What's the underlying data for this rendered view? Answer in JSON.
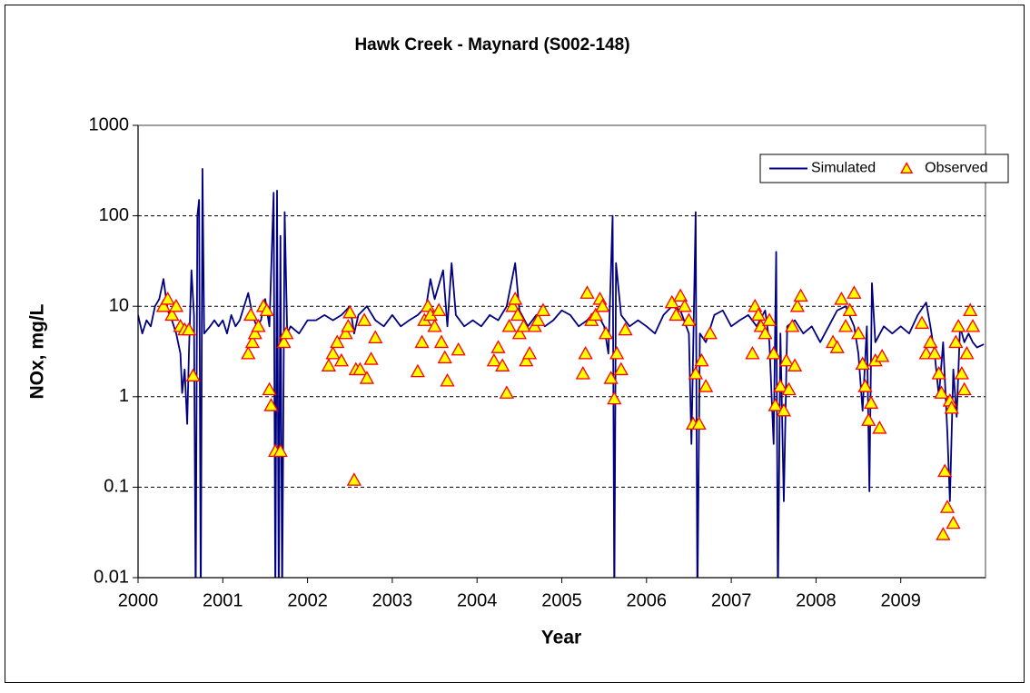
{
  "chart_data": {
    "type": "line",
    "title": "Hawk Creek - Maynard (S002-148)",
    "xlabel": "Year",
    "ylabel": "NOx, mg/L",
    "yscale": "log",
    "grid": true,
    "legend": "upper right",
    "xlim": [
      2000,
      2010
    ],
    "xticks": [
      2000,
      2001,
      2002,
      2003,
      2004,
      2005,
      2006,
      2007,
      2008,
      2009
    ],
    "ylim": [
      0.01,
      1000
    ],
    "yticks": [
      0.01,
      0.1,
      1,
      10,
      100,
      1000
    ],
    "series": [
      {
        "name": "Simulated",
        "type": "line",
        "color": "#000080",
        "x": [
          2000.0,
          2000.05,
          2000.1,
          2000.15,
          2000.2,
          2000.25,
          2000.3,
          2000.35,
          2000.4,
          2000.45,
          2000.5,
          2000.52,
          2000.55,
          2000.58,
          2000.6,
          2000.63,
          2000.66,
          2000.68,
          2000.7,
          2000.72,
          2000.74,
          2000.76,
          2000.78,
          2000.85,
          2000.9,
          2000.95,
          2001.0,
          2001.05,
          2001.1,
          2001.15,
          2001.2,
          2001.3,
          2001.35,
          2001.4,
          2001.45,
          2001.5,
          2001.55,
          2001.6,
          2001.62,
          2001.64,
          2001.66,
          2001.68,
          2001.7,
          2001.73,
          2001.76,
          2001.8,
          2001.9,
          2002.0,
          2002.1,
          2002.2,
          2002.3,
          2002.4,
          2002.5,
          2002.55,
          2002.6,
          2002.7,
          2002.8,
          2002.9,
          2003.0,
          2003.1,
          2003.2,
          2003.3,
          2003.4,
          2003.45,
          2003.5,
          2003.6,
          2003.65,
          2003.7,
          2003.75,
          2003.85,
          2003.95,
          2004.05,
          2004.15,
          2004.25,
          2004.35,
          2004.45,
          2004.5,
          2004.6,
          2004.7,
          2004.8,
          2004.9,
          2005.0,
          2005.1,
          2005.2,
          2005.3,
          2005.4,
          2005.5,
          2005.55,
          2005.6,
          2005.62,
          2005.64,
          2005.7,
          2005.8,
          2005.9,
          2006.0,
          2006.1,
          2006.2,
          2006.3,
          2006.4,
          2006.5,
          2006.53,
          2006.56,
          2006.58,
          2006.6,
          2006.63,
          2006.7,
          2006.8,
          2006.9,
          2007.0,
          2007.1,
          2007.2,
          2007.3,
          2007.4,
          2007.45,
          2007.5,
          2007.53,
          2007.55,
          2007.58,
          2007.62,
          2007.66,
          2007.75,
          2007.85,
          2007.95,
          2008.05,
          2008.15,
          2008.25,
          2008.35,
          2008.45,
          2008.5,
          2008.55,
          2008.6,
          2008.63,
          2008.66,
          2008.7,
          2008.8,
          2008.9,
          2009.0,
          2009.1,
          2009.2,
          2009.3,
          2009.35,
          2009.4,
          2009.45,
          2009.5,
          2009.55,
          2009.58,
          2009.62,
          2009.66,
          2009.7,
          2009.75,
          2009.8,
          2009.85,
          2009.9,
          2009.98
        ],
        "values": [
          8,
          5,
          7,
          6,
          10,
          12,
          20,
          9,
          7,
          5,
          3,
          1.1,
          2,
          0.5,
          3,
          25,
          8,
          0.005,
          100,
          150,
          0.005,
          330,
          5,
          6,
          7,
          6,
          7,
          5,
          8,
          6,
          7,
          14,
          8,
          6,
          7,
          12,
          6,
          180,
          0.005,
          190,
          0.005,
          60,
          0.005,
          110,
          5,
          6,
          5,
          7,
          7,
          8,
          7,
          8,
          10,
          5,
          8,
          10,
          7,
          6,
          8,
          6,
          7,
          8,
          10,
          20,
          12,
          25,
          6,
          30,
          8,
          6,
          7,
          6,
          8,
          7,
          10,
          30,
          9,
          6,
          8,
          6,
          7,
          9,
          8,
          6,
          7,
          9,
          6,
          3,
          100,
          0.005,
          30,
          8,
          6,
          7,
          6,
          5,
          8,
          10,
          9,
          5,
          0.3,
          10,
          110,
          0.005,
          5,
          4,
          8,
          9,
          6,
          7,
          8,
          6,
          9,
          4,
          0.3,
          40,
          0.005,
          5,
          0.07,
          6,
          7,
          5,
          6,
          4,
          6,
          9,
          10,
          6,
          3,
          0.7,
          6,
          0.09,
          18,
          4,
          6,
          5,
          6,
          5,
          8,
          11,
          6,
          3,
          1,
          4,
          0.4,
          0.07,
          2,
          0.6,
          6,
          4,
          5,
          4,
          3.5,
          3.8
        ]
      },
      {
        "name": "Observed",
        "type": "scatter",
        "color": "#ffff00",
        "edgecolor": "#ff0000",
        "x": [
          2000.3,
          2000.35,
          2000.4,
          2000.45,
          2000.5,
          2000.55,
          2000.6,
          2000.65,
          2001.3,
          2001.33,
          2001.35,
          2001.38,
          2001.42,
          2001.48,
          2001.52,
          2001.55,
          2001.57,
          2001.62,
          2001.68,
          2001.72,
          2001.75,
          2002.25,
          2002.3,
          2002.35,
          2002.4,
          2002.45,
          2002.48,
          2002.5,
          2002.55,
          2002.57,
          2002.62,
          2002.67,
          2002.7,
          2002.75,
          2002.8,
          2003.3,
          2003.35,
          2003.38,
          2003.42,
          2003.45,
          2003.5,
          2003.55,
          2003.58,
          2003.62,
          2003.65,
          2003.78,
          2004.2,
          2004.25,
          2004.3,
          2004.35,
          2004.38,
          2004.42,
          2004.45,
          2004.48,
          2004.5,
          2004.55,
          2004.58,
          2004.62,
          2004.68,
          2004.72,
          2004.78,
          2005.25,
          2005.28,
          2005.3,
          2005.35,
          2005.4,
          2005.45,
          2005.48,
          2005.52,
          2005.58,
          2005.62,
          2005.65,
          2005.7,
          2005.75,
          2006.3,
          2006.35,
          2006.4,
          2006.45,
          2006.5,
          2006.55,
          2006.58,
          2006.62,
          2006.65,
          2006.7,
          2006.75,
          2007.25,
          2007.28,
          2007.32,
          2007.35,
          2007.4,
          2007.45,
          2007.5,
          2007.52,
          2007.58,
          2007.62,
          2007.65,
          2007.68,
          2007.72,
          2007.75,
          2007.78,
          2007.82,
          2008.2,
          2008.25,
          2008.3,
          2008.35,
          2008.4,
          2008.45,
          2008.5,
          2008.55,
          2008.58,
          2008.62,
          2008.65,
          2008.7,
          2008.75,
          2008.78,
          2009.25,
          2009.3,
          2009.35,
          2009.4,
          2009.45,
          2009.48,
          2009.5,
          2009.52,
          2009.55,
          2009.58,
          2009.6,
          2009.62,
          2009.65,
          2009.68,
          2009.72,
          2009.75,
          2009.78,
          2009.82,
          2009.85
        ],
        "values": [
          10,
          12,
          8,
          10,
          6,
          5.5,
          5.5,
          1.7,
          3,
          8,
          4,
          5,
          6,
          10,
          9,
          1.2,
          0.8,
          0.25,
          0.25,
          4,
          5,
          2.2,
          3,
          4,
          2.5,
          5,
          6,
          8.5,
          0.12,
          2,
          2,
          7,
          1.6,
          2.6,
          4.5,
          1.9,
          4,
          7,
          10,
          8,
          6,
          9,
          4,
          2.7,
          1.5,
          3.3,
          2.5,
          3.5,
          2.2,
          1.1,
          6,
          10,
          12,
          8,
          5,
          6,
          2.5,
          3,
          6,
          7,
          9,
          1.8,
          3,
          14,
          7,
          8,
          12,
          10,
          5,
          1.6,
          0.95,
          3,
          2,
          5.5,
          11,
          8,
          13,
          10,
          7,
          0.5,
          1.8,
          0.5,
          2.5,
          1.3,
          5,
          3,
          10,
          8,
          6,
          5,
          7,
          3,
          0.8,
          1.3,
          0.7,
          2.5,
          1.2,
          6,
          2.2,
          10,
          13,
          4,
          3.5,
          12,
          6,
          9,
          14,
          5,
          2.3,
          1.3,
          0.55,
          0.85,
          2.5,
          0.45,
          2.8,
          6.5,
          3,
          4,
          3,
          1.8,
          1.1,
          0.03,
          0.15,
          0.06,
          0.9,
          0.75,
          0.04,
          4,
          6,
          1.8,
          1.2,
          3,
          9,
          6
        ]
      }
    ]
  }
}
